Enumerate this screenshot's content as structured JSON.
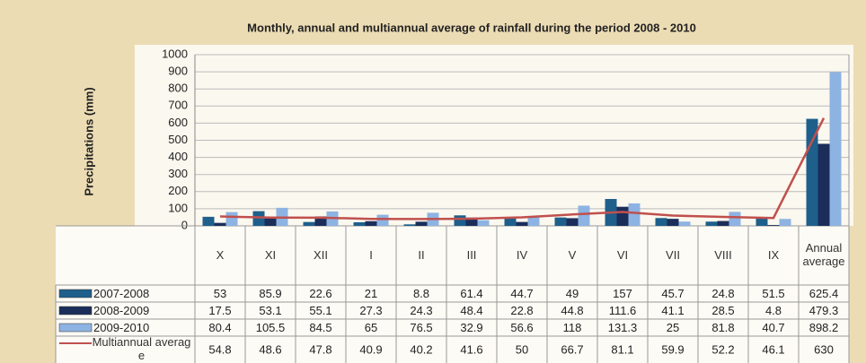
{
  "chart_data": {
    "type": "bar",
    "title": "Monthly, annual and multiannual  average of rainfall during the period 2008 -  2010",
    "y_label": "Precipitations (mm)",
    "categories": [
      "X",
      "XI",
      "XII",
      "I",
      "II",
      "III",
      "IV",
      "V",
      "VI",
      "VII",
      "VIII",
      "IX",
      "Annual average"
    ],
    "series": [
      {
        "name": "2007-2008",
        "color": "#1f5f8b",
        "type": "bar",
        "values": [
          53,
          85.9,
          22.6,
          21,
          8.8,
          61.4,
          44.7,
          49,
          157,
          45.7,
          24.8,
          51.5,
          625.4
        ]
      },
      {
        "name": "2008-2009",
        "color": "#1b2e5a",
        "type": "bar",
        "values": [
          17.5,
          53.1,
          55.1,
          27.3,
          24.3,
          48.4,
          22.8,
          44.8,
          111.6,
          41.1,
          28.5,
          4.8,
          479.3
        ]
      },
      {
        "name": "2009-2010",
        "color": "#8db3e2",
        "type": "bar",
        "values": [
          80.4,
          105.5,
          84.5,
          65,
          76.5,
          32.9,
          56.6,
          118,
          131.3,
          25,
          81.8,
          40.7,
          898.2
        ]
      },
      {
        "name": "Multiannual average",
        "color": "#c0504d",
        "type": "line",
        "values": [
          54.8,
          48.6,
          47.8,
          40.9,
          40.2,
          41.6,
          50,
          66.7,
          81.1,
          59.9,
          52.2,
          46.1,
          630
        ]
      }
    ],
    "ylim": [
      0,
      1000
    ],
    "yticks": [
      0,
      100,
      200,
      300,
      400,
      500,
      600,
      700,
      800,
      900,
      1000
    ],
    "grid": true
  }
}
